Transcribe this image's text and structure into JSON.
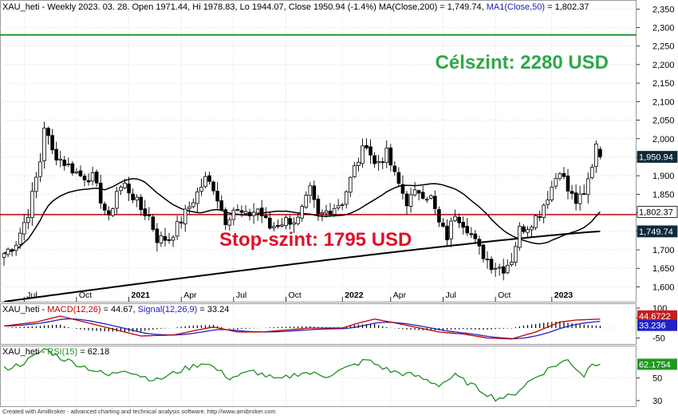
{
  "header": {
    "title": "XAU_heti - Weekly 2023. 03. 28. Open 1971.44, Hi 1978.83, Lo 1944.07, Close 1950.94 (-1.4%) MA(Close,200) = 1,749.74, ",
    "ma50_label": "MA1(Close,50)",
    "ma50_value": " = 1,802.37"
  },
  "annotations": {
    "target_text": "Célszint: 2280 USD",
    "stop_text": "Stop-szint: 1795 USD"
  },
  "colors": {
    "background": "#ffffff",
    "grid": "#c8c8c8",
    "bull": "#ffffff",
    "bear": "#000000",
    "target_line": "#1e9a2e",
    "stop_line": "#c00000",
    "ma": "#000000",
    "macd": "#c00000",
    "signal": "#2020c0",
    "rsi": "#1f8f1f",
    "target_text": "#2ea84a",
    "stop_text": "#e0102a",
    "tag_dark": "#0d2a3a",
    "tag_red": "#c81e1e",
    "tag_blue": "#2121c8",
    "tag_green": "#1e9a1e"
  },
  "chart_data": [
    {
      "type": "candlestick",
      "timeframe": "weekly",
      "ylim": [
        1560,
        2370
      ],
      "y_ticks": [
        "2,350",
        "2,300",
        "2,250",
        "2,200",
        "2,150",
        "2,100",
        "2,050",
        "2,000",
        "1,950",
        "1,900",
        "1,850",
        "1,800",
        "1,750",
        "1,700",
        "1,650",
        "1,600"
      ],
      "x_ticks": [
        {
          "label": "Jul",
          "bold": false,
          "index": 5
        },
        {
          "label": "Oct",
          "bold": false,
          "index": 18
        },
        {
          "label": "2021",
          "bold": true,
          "index": 31
        },
        {
          "label": "Apr",
          "bold": false,
          "index": 44
        },
        {
          "label": "Jul",
          "bold": false,
          "index": 57
        },
        {
          "label": "Oct",
          "bold": false,
          "index": 70
        },
        {
          "label": "2022",
          "bold": true,
          "index": 84
        },
        {
          "label": "Apr",
          "bold": false,
          "index": 96
        },
        {
          "label": "Jul",
          "bold": false,
          "index": 109
        },
        {
          "label": "Oct",
          "bold": false,
          "index": 122
        },
        {
          "label": "2023",
          "bold": true,
          "index": 136
        }
      ],
      "close_anchors": [
        [
          0,
          1690
        ],
        [
          3,
          1720
        ],
        [
          6,
          1800
        ],
        [
          9,
          1940
        ],
        [
          10,
          2035
        ],
        [
          12,
          1965
        ],
        [
          15,
          1935
        ],
        [
          19,
          1900
        ],
        [
          22,
          1895
        ],
        [
          26,
          1780
        ],
        [
          28,
          1860
        ],
        [
          30,
          1875
        ],
        [
          32,
          1845
        ],
        [
          34,
          1810
        ],
        [
          36,
          1790
        ],
        [
          38,
          1730
        ],
        [
          41,
          1730
        ],
        [
          44,
          1780
        ],
        [
          47,
          1835
        ],
        [
          50,
          1890
        ],
        [
          52,
          1870
        ],
        [
          55,
          1780
        ],
        [
          57,
          1810
        ],
        [
          60,
          1790
        ],
        [
          63,
          1810
        ],
        [
          66,
          1760
        ],
        [
          70,
          1780
        ],
        [
          73,
          1780
        ],
        [
          76,
          1860
        ],
        [
          78,
          1790
        ],
        [
          81,
          1810
        ],
        [
          84,
          1830
        ],
        [
          87,
          1920
        ],
        [
          90,
          1990
        ],
        [
          92,
          1930
        ],
        [
          95,
          1960
        ],
        [
          97,
          1900
        ],
        [
          100,
          1830
        ],
        [
          103,
          1860
        ],
        [
          106,
          1840
        ],
        [
          108,
          1770
        ],
        [
          110,
          1735
        ],
        [
          112,
          1800
        ],
        [
          115,
          1760
        ],
        [
          118,
          1700
        ],
        [
          121,
          1660
        ],
        [
          124,
          1650
        ],
        [
          126,
          1675
        ],
        [
          128,
          1755
        ],
        [
          130,
          1765
        ],
        [
          133,
          1800
        ],
        [
          136,
          1870
        ],
        [
          138,
          1920
        ],
        [
          140,
          1860
        ],
        [
          142,
          1830
        ],
        [
          144,
          1845
        ],
        [
          146,
          1930
        ],
        [
          147,
          1990
        ],
        [
          148,
          1950.94
        ]
      ],
      "last_bar": {
        "open": 1971.44,
        "high": 1978.83,
        "low": 1944.07,
        "close": 1950.94
      },
      "ma200": {
        "name": "MA(Close,200)",
        "start": 1560,
        "end": 1749.74
      },
      "ma50": {
        "name": "MA1(Close,50)",
        "last": 1802.37
      },
      "horizontal_lines": [
        {
          "name": "Célszint",
          "value": 2280
        },
        {
          "name": "Stop-szint",
          "value": 1795
        }
      ],
      "price_tags": [
        "1,950.94",
        "1,802.37",
        "1,749.74"
      ]
    },
    {
      "type": "line",
      "name": "MACD",
      "label_prefix": "XAU_heti - ",
      "macd_label": "MACD(12,26)",
      "macd_value": " = 44.67, ",
      "signal_label": "Signal(12,26,9)",
      "signal_value": " = 33.24",
      "y_ticks": [
        "100",
        "50",
        "-50"
      ],
      "ylim": [
        -80,
        120
      ],
      "macd_last": 44.6722,
      "signal_last": 33.236,
      "tags": [
        "44.6722",
        "33.236"
      ],
      "anchors": [
        [
          0,
          10
        ],
        [
          8,
          30
        ],
        [
          14,
          60
        ],
        [
          20,
          30
        ],
        [
          28,
          -10
        ],
        [
          34,
          -40
        ],
        [
          42,
          -35
        ],
        [
          48,
          -10
        ],
        [
          52,
          5
        ],
        [
          58,
          -20
        ],
        [
          64,
          -20
        ],
        [
          70,
          -10
        ],
        [
          76,
          0
        ],
        [
          84,
          0
        ],
        [
          88,
          25
        ],
        [
          92,
          45
        ],
        [
          96,
          30
        ],
        [
          102,
          5
        ],
        [
          108,
          -20
        ],
        [
          114,
          -30
        ],
        [
          120,
          -50
        ],
        [
          126,
          -55
        ],
        [
          132,
          -20
        ],
        [
          138,
          30
        ],
        [
          142,
          40
        ],
        [
          148,
          44.67
        ]
      ]
    },
    {
      "type": "line",
      "name": "RSI",
      "label_prefix": "XAU_heti - ",
      "rsi_label": "RSI(15)",
      "rsi_value": " = 62.18",
      "y_ticks": [
        "50",
        "30"
      ],
      "ylim": [
        25,
        78
      ],
      "last": 62.1754,
      "tag": "62.1754",
      "anchors": [
        [
          0,
          58
        ],
        [
          4,
          62
        ],
        [
          8,
          70
        ],
        [
          10,
          76
        ],
        [
          14,
          68
        ],
        [
          20,
          60
        ],
        [
          26,
          52
        ],
        [
          30,
          58
        ],
        [
          34,
          52
        ],
        [
          38,
          48
        ],
        [
          44,
          57
        ],
        [
          50,
          64
        ],
        [
          56,
          50
        ],
        [
          62,
          56
        ],
        [
          68,
          48
        ],
        [
          74,
          55
        ],
        [
          80,
          52
        ],
        [
          86,
          60
        ],
        [
          90,
          66
        ],
        [
          96,
          56
        ],
        [
          102,
          52
        ],
        [
          108,
          44
        ],
        [
          112,
          52
        ],
        [
          118,
          40
        ],
        [
          122,
          32
        ],
        [
          126,
          34
        ],
        [
          130,
          46
        ],
        [
          136,
          60
        ],
        [
          140,
          66
        ],
        [
          144,
          52
        ],
        [
          146,
          64
        ],
        [
          148,
          62.18
        ]
      ]
    }
  ],
  "footer": {
    "text": "Created with AmiBroker - advanced charting and technical analysis software. http://www.amibroker.com"
  }
}
